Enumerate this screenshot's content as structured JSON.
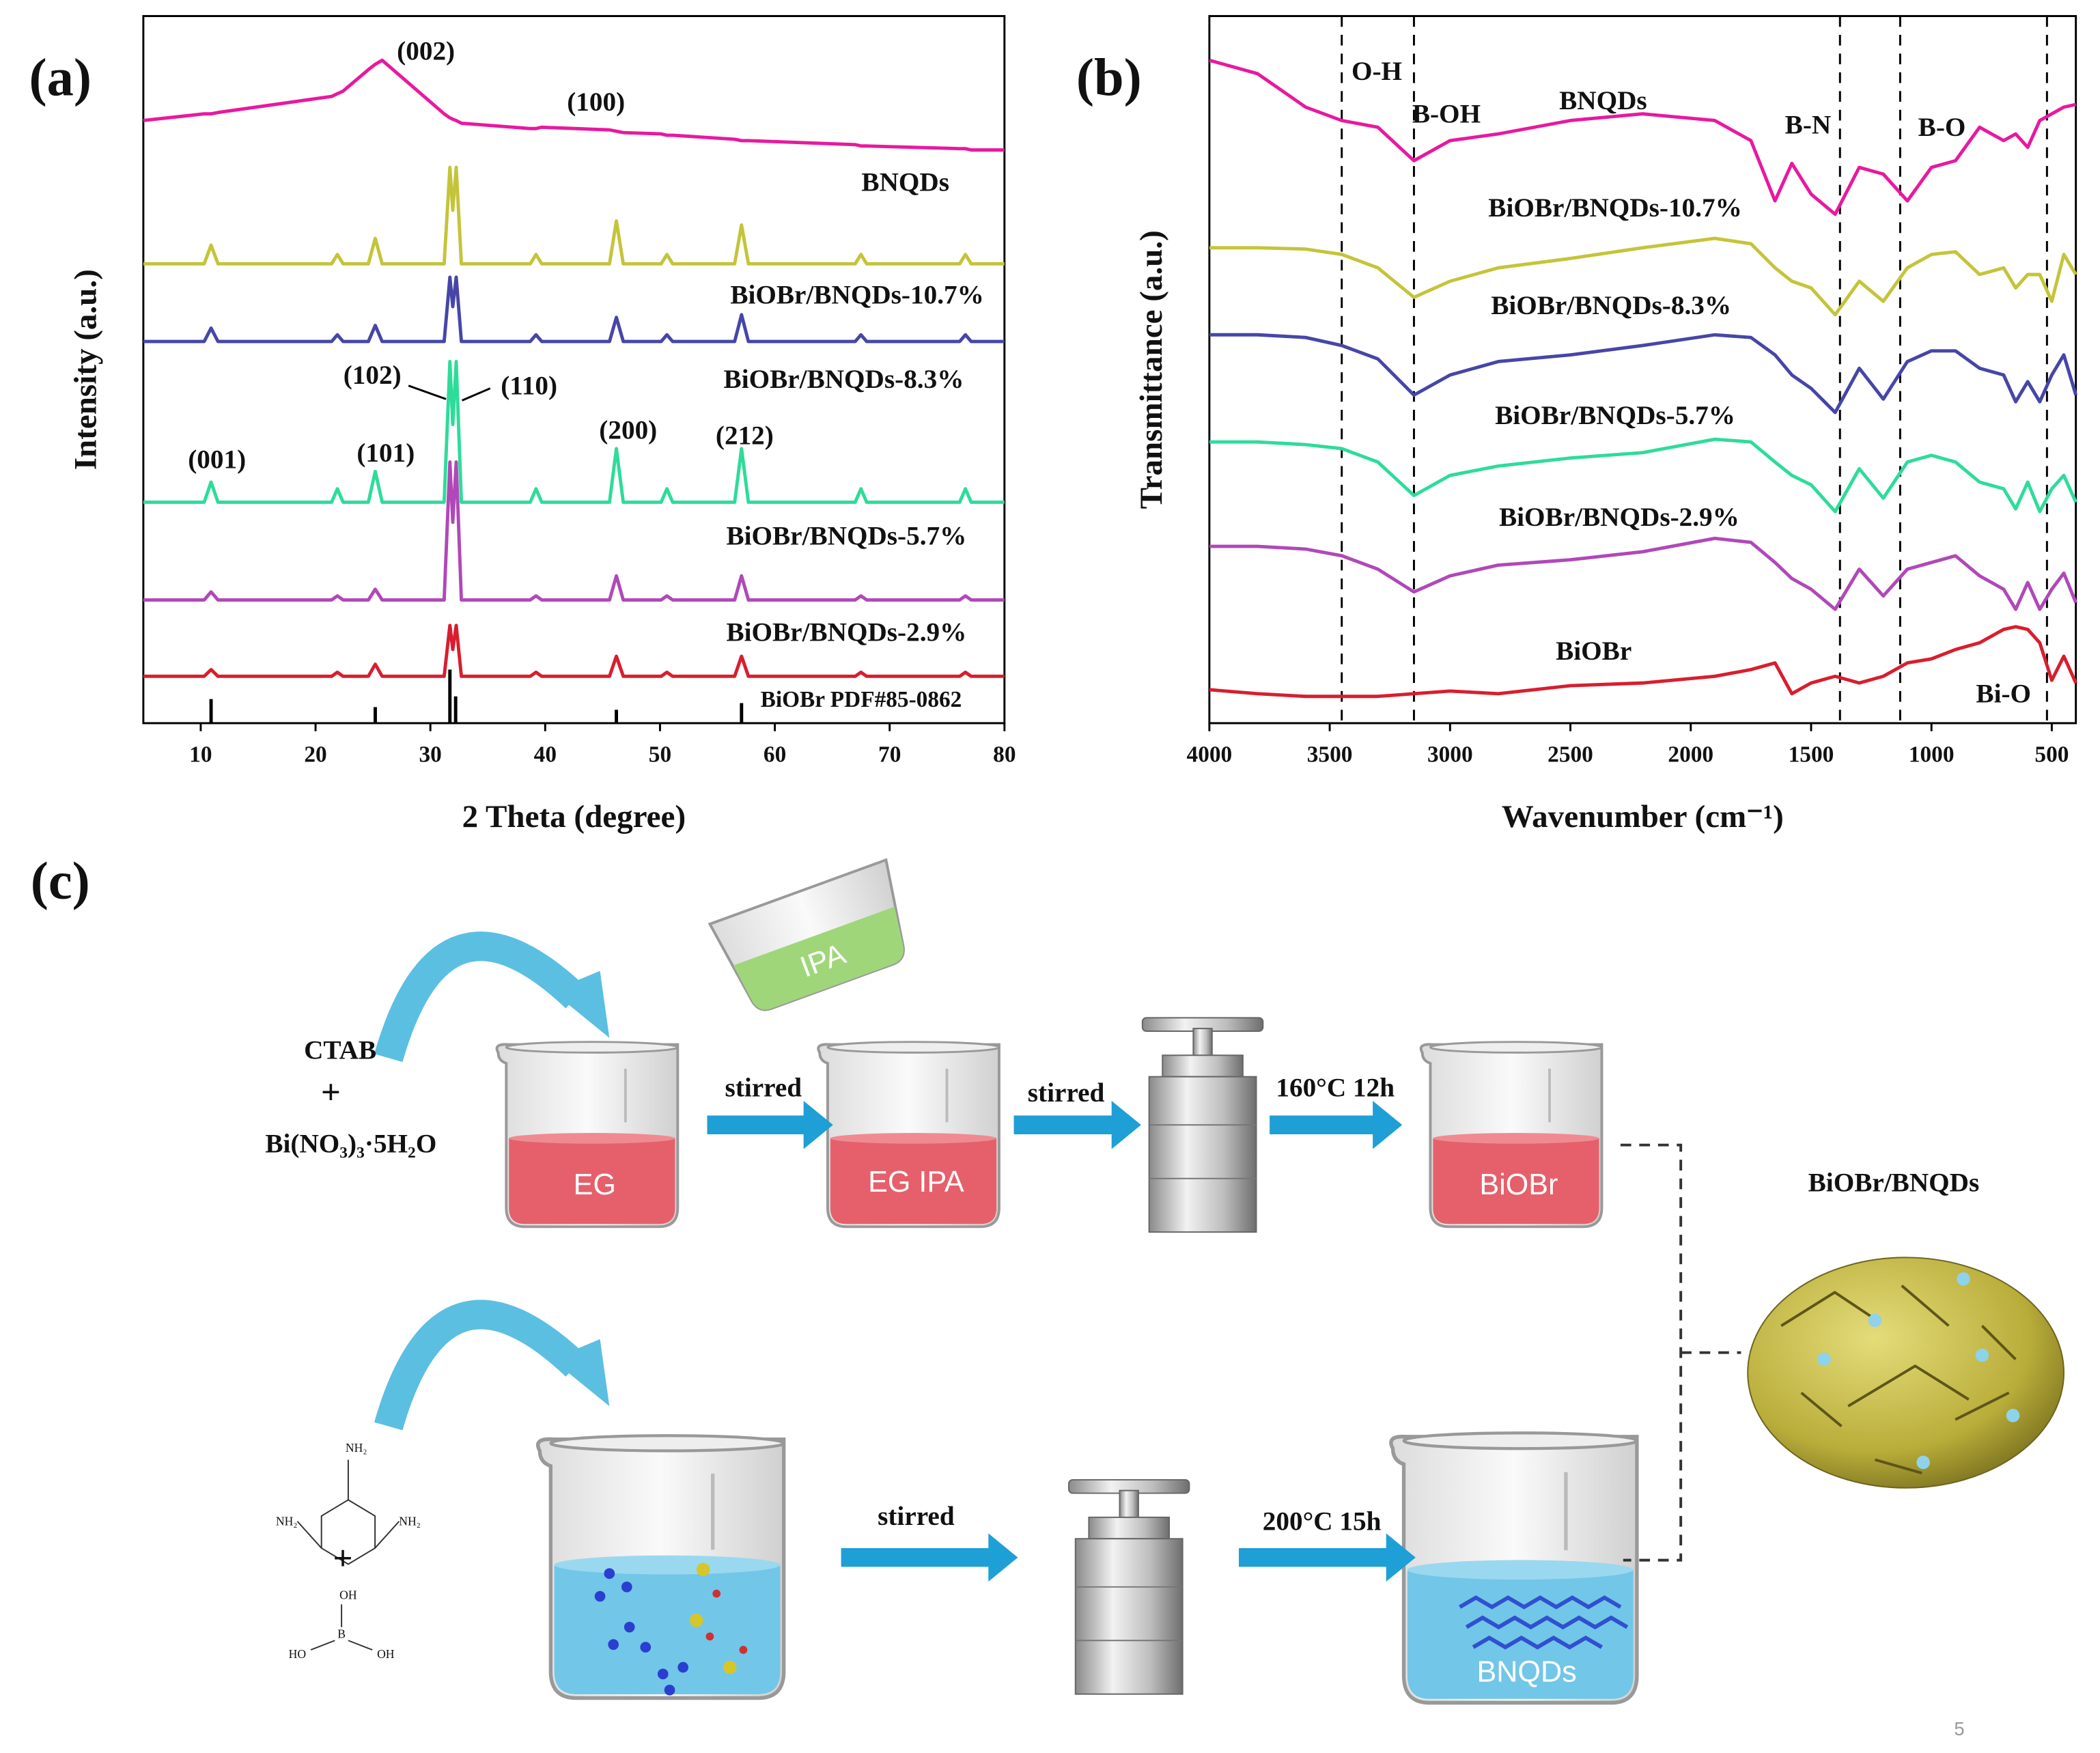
{
  "chart_data": [
    {
      "type": "line",
      "panel_label": "(a)",
      "xlabel": "2 Theta (degree)",
      "ylabel": "Intensity (a.u.)",
      "xlim": [
        5,
        80
      ],
      "ylim": [
        0,
        528
      ],
      "xticks": [
        10,
        20,
        30,
        40,
        50,
        60,
        70,
        80
      ],
      "x": [
        5,
        10.3,
        10.9,
        11.5,
        21.4,
        21.9,
        22.4,
        24.6,
        25.2,
        25.8,
        31.2,
        31.7,
        31.95,
        32.25,
        32.7,
        38.7,
        39.2,
        39.7,
        45.6,
        46.2,
        46.8,
        50.1,
        50.6,
        51.1,
        56.5,
        57.1,
        57.7,
        67,
        67.5,
        68,
        76.1,
        76.6,
        77.1,
        80
      ],
      "series": [
        {
          "name": "BNQDs",
          "color": "#e8199f",
          "values": [
            450,
            455,
            455,
            456,
            468,
            470,
            472,
            488,
            492,
            495,
            455,
            452,
            451,
            450,
            448,
            444,
            444,
            445,
            443,
            442,
            441,
            440,
            439,
            439,
            436,
            435,
            435,
            432,
            431,
            431,
            429,
            429,
            428,
            428
          ]
        },
        {
          "name": "BiOBr/BNQDs-10.7%",
          "color": "#c4c43a",
          "values": [
            343,
            343,
            357,
            343,
            343,
            350,
            343,
            343,
            362,
            343,
            343,
            415,
            383,
            415,
            343,
            343,
            350,
            343,
            343,
            375,
            343,
            343,
            350,
            343,
            343,
            372,
            343,
            343,
            350,
            343,
            343,
            350,
            343,
            343
          ]
        },
        {
          "name": "BiOBr/BNQDs-8.3%",
          "color": "#4646a8",
          "values": [
            285,
            285,
            295,
            285,
            285,
            290,
            285,
            285,
            297,
            285,
            285,
            333,
            311,
            333,
            285,
            285,
            290,
            285,
            285,
            303,
            285,
            285,
            290,
            285,
            285,
            305,
            285,
            285,
            290,
            285,
            285,
            290,
            285,
            285
          ]
        },
        {
          "name": "BiOBr/BNQDs-5.7%",
          "color": "#2edc9a",
          "values": [
            165,
            165,
            180,
            165,
            165,
            175,
            165,
            165,
            188,
            165,
            165,
            270,
            223,
            270,
            165,
            165,
            175,
            165,
            165,
            205,
            165,
            165,
            175,
            165,
            165,
            205,
            165,
            165,
            175,
            165,
            165,
            175,
            165,
            165
          ]
        },
        {
          "name": "BiOBr/BNQDs-2.9%",
          "color": "#b048b8",
          "values": [
            92,
            92,
            98,
            92,
            92,
            95,
            92,
            92,
            100,
            92,
            92,
            195,
            150,
            195,
            92,
            92,
            95,
            92,
            92,
            110,
            92,
            92,
            95,
            92,
            92,
            110,
            92,
            92,
            95,
            92,
            92,
            95,
            92,
            92
          ]
        },
        {
          "color": "#d81e2e",
          "values": [
            35,
            35,
            40,
            35,
            35,
            38,
            35,
            35,
            44,
            35,
            35,
            73,
            55,
            73,
            35,
            35,
            38,
            35,
            35,
            50,
            35,
            35,
            38,
            35,
            35,
            50,
            35,
            35,
            38,
            35,
            35,
            38,
            35,
            35
          ]
        }
      ],
      "reference": {
        "name": "BiOBr PDF#85-0862",
        "color": "#000000",
        "x": [
          10.9,
          25.2,
          31.7,
          32.2,
          46.2,
          57.1
        ],
        "values": [
          18,
          12,
          40,
          20,
          10,
          15
        ]
      },
      "annotations": [
        "(002)",
        "(100)",
        "(102)",
        "(110)",
        "(001)",
        "(101)",
        "(200)",
        "(212)"
      ]
    },
    {
      "type": "line",
      "panel_label": "(b)",
      "xlabel": "Wavenumber (cm⁻¹)",
      "ylabel": "Transmittance (a.u.)",
      "xlim": [
        4000,
        400
      ],
      "ylim": [
        0,
        528
      ],
      "xticks": [
        4000,
        3500,
        3000,
        2500,
        2000,
        1500,
        1000,
        500
      ],
      "x": [
        4000,
        3800,
        3600,
        3450,
        3300,
        3150,
        3000,
        2800,
        2500,
        2200,
        1900,
        1750,
        1650,
        1580,
        1500,
        1400,
        1300,
        1200,
        1100,
        1000,
        900,
        800,
        700,
        650,
        600,
        550,
        500,
        450,
        400
      ],
      "series": [
        {
          "name": "BNQDs",
          "color": "#e8199f",
          "values": [
            495,
            485,
            460,
            450,
            445,
            420,
            435,
            440,
            450,
            455,
            450,
            435,
            390,
            418,
            395,
            380,
            415,
            410,
            390,
            415,
            420,
            445,
            435,
            440,
            430,
            450,
            455,
            460,
            462
          ]
        },
        {
          "name": "BiOBr/BNQDs-10.7%",
          "color": "#c4c43a",
          "values": [
            355,
            355,
            354,
            350,
            340,
            318,
            330,
            340,
            347,
            355,
            362,
            358,
            340,
            330,
            325,
            305,
            330,
            315,
            340,
            350,
            352,
            335,
            340,
            325,
            335,
            335,
            315,
            350,
            335
          ]
        },
        {
          "name": "BiOBr/BNQDs-8.3%",
          "color": "#4646a8",
          "values": [
            290,
            290,
            288,
            282,
            272,
            245,
            260,
            270,
            275,
            282,
            290,
            288,
            275,
            260,
            250,
            232,
            265,
            242,
            270,
            278,
            278,
            265,
            260,
            240,
            255,
            240,
            260,
            275,
            245
          ]
        },
        {
          "name": "BiOBr/BNQDs-5.7%",
          "color": "#2edc9a",
          "values": [
            210,
            210,
            208,
            205,
            195,
            170,
            185,
            192,
            198,
            202,
            212,
            210,
            195,
            185,
            178,
            158,
            190,
            168,
            195,
            200,
            195,
            180,
            175,
            160,
            180,
            158,
            175,
            185,
            165
          ]
        },
        {
          "name": "BiOBr/BNQDs-2.9%",
          "color": "#b048b8",
          "values": [
            132,
            132,
            130,
            125,
            115,
            98,
            110,
            118,
            122,
            128,
            138,
            135,
            120,
            108,
            100,
            85,
            115,
            95,
            115,
            120,
            125,
            110,
            100,
            85,
            105,
            85,
            100,
            112,
            90
          ]
        },
        {
          "name": "BiOBr",
          "color": "#d81e2e",
          "values": [
            25,
            22,
            20,
            20,
            20,
            22,
            24,
            22,
            28,
            30,
            35,
            40,
            45,
            22,
            30,
            35,
            30,
            35,
            45,
            48,
            55,
            60,
            70,
            72,
            70,
            60,
            32,
            50,
            30
          ]
        }
      ],
      "vlines": [
        3450,
        3150,
        1380,
        1130,
        520
      ],
      "annotations": [
        "O-H",
        "B-OH",
        "B-N",
        "B-O",
        "Bi-O"
      ]
    }
  ],
  "diagram": {
    "panel_label": "(c)",
    "reagents_top": [
      "CTAB",
      "+",
      "Bi(NO₃)₃·5H₂O"
    ],
    "beakers": [
      "EG",
      "EG IPA",
      "BiOBr",
      "BNQDs"
    ],
    "solvent": "IPA",
    "steps": [
      "stirred",
      "stirred",
      "160°C 12h",
      "stirred",
      "200°C 15h"
    ],
    "product": "BiOBr/BNQDs",
    "melamine": [
      "NH₂",
      "NH₂",
      "NH₂"
    ],
    "plus": "+",
    "boric_acid": [
      "OH",
      "B",
      "HO",
      "OH"
    ]
  },
  "page_number": "5"
}
